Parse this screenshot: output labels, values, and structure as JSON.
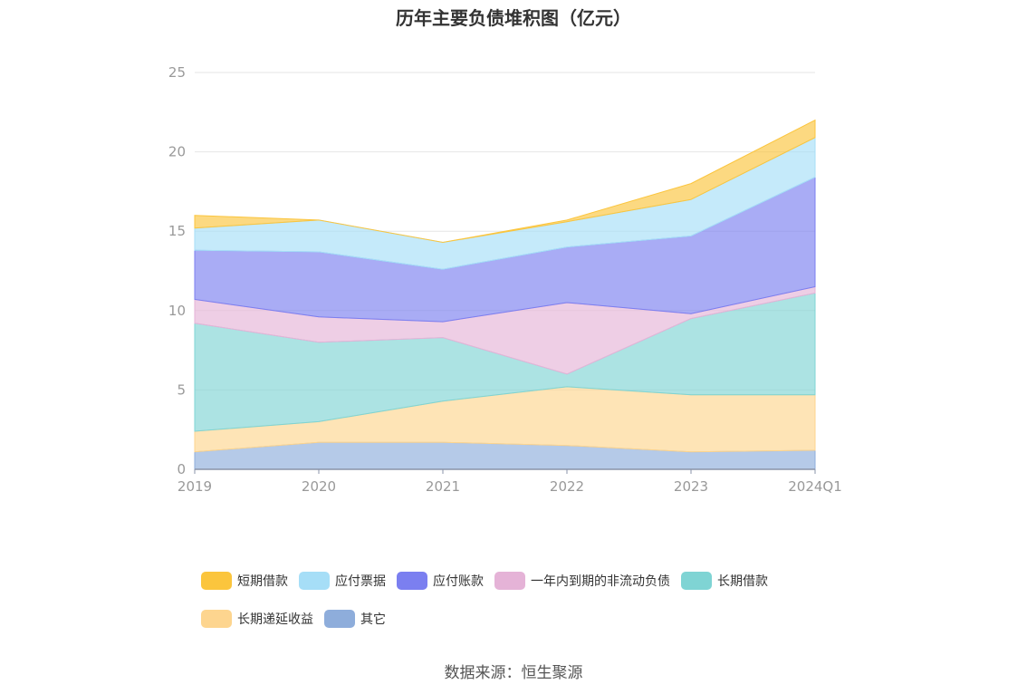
{
  "header": {
    "title": "历年主要负债堆积图（亿元）"
  },
  "footer": {
    "source": "数据来源：恒生聚源"
  },
  "chart_data": {
    "type": "area",
    "stacked": true,
    "title": "历年主要负债堆积图（亿元）",
    "x": [
      "2019",
      "2020",
      "2021",
      "2022",
      "2023",
      "2024Q1"
    ],
    "ylim": [
      0,
      25
    ],
    "yticks": [
      0,
      5,
      10,
      15,
      20,
      25
    ],
    "grid": true,
    "legend_position": "bottom",
    "series": [
      {
        "name": "其它",
        "color": "#8eaddb",
        "values": [
          1.1,
          1.7,
          1.7,
          1.5,
          1.1,
          1.2
        ]
      },
      {
        "name": "长期递延收益",
        "color": "#fdd58f",
        "values": [
          1.3,
          1.3,
          2.6,
          3.7,
          3.6,
          3.5
        ]
      },
      {
        "name": "长期借款",
        "color": "#7fd4d4",
        "values": [
          6.8,
          5.0,
          4.0,
          0.8,
          4.8,
          6.4
        ]
      },
      {
        "name": "一年内到期的非流动负债",
        "color": "#e5b3d7",
        "values": [
          1.5,
          1.6,
          1.0,
          4.5,
          0.3,
          0.4
        ]
      },
      {
        "name": "应付账款",
        "color": "#7b7ff0",
        "values": [
          3.1,
          4.1,
          3.3,
          3.5,
          4.9,
          6.9
        ]
      },
      {
        "name": "应付票据",
        "color": "#a6def7",
        "values": [
          1.4,
          2.0,
          1.7,
          1.6,
          2.3,
          2.5
        ]
      },
      {
        "name": "短期借款",
        "color": "#fbc53d",
        "values": [
          0.8,
          0.0,
          0.0,
          0.1,
          1.0,
          1.1
        ]
      }
    ],
    "legend_order": [
      "短期借款",
      "应付票据",
      "应付账款",
      "一年内到期的非流动负债",
      "长期借款",
      "长期递延收益",
      "其它"
    ]
  }
}
